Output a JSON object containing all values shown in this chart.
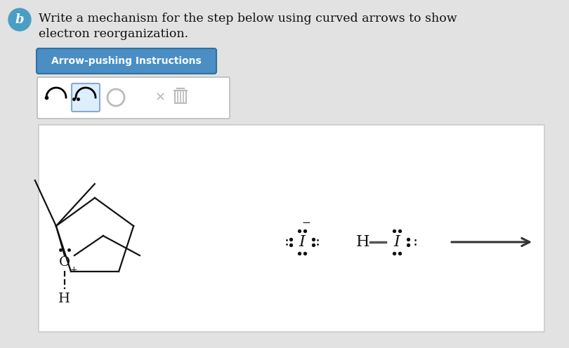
{
  "bg_color": "#e2e2e2",
  "white": "#ffffff",
  "text_color": "#111111",
  "b_circle_color": "#4a9ec4",
  "b_text": "b",
  "title_line1": "Write a mechanism for the step below using curved arrows to show",
  "title_line2": "electron reorganization.",
  "button_text": "Arrow-pushing Instructions",
  "button_color": "#4a8ec4",
  "button_edge": "#3070a0",
  "title_fontsize": 12.5,
  "button_fontsize": 10.0
}
